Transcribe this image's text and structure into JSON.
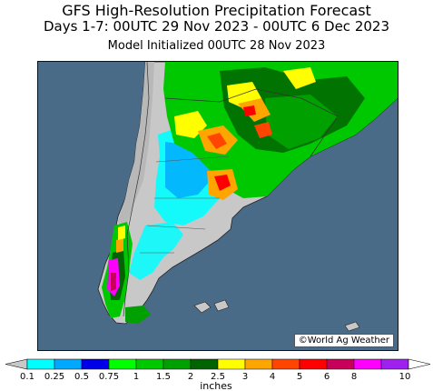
{
  "header": {
    "title": "GFS High-Resolution Precipitation Forecast",
    "period": "Days 1-7: 00UTC 29 Nov 2023 - 00UTC 6 Dec 2023",
    "initialized": "Model Initialized 00UTC 28 Nov 2023"
  },
  "map": {
    "ocean_color": "#4a6b87",
    "land_dry_color": "#c8c8c8",
    "copyright": "©World Ag Weather"
  },
  "legend": {
    "unit": "inches",
    "labels": [
      "0.1",
      "0.25",
      "0.5",
      "0.75",
      "1",
      "1.5",
      "2",
      "2.5",
      "3",
      "4",
      "5",
      "6",
      "8",
      "10"
    ],
    "colors": [
      "#00ffff",
      "#00a8ff",
      "#0000e8",
      "#00ff00",
      "#00c800",
      "#00a000",
      "#006400",
      "#ffff00",
      "#ffa500",
      "#ff4500",
      "#ff0000",
      "#c8005a",
      "#ff00ff",
      "#a020f0"
    ]
  }
}
